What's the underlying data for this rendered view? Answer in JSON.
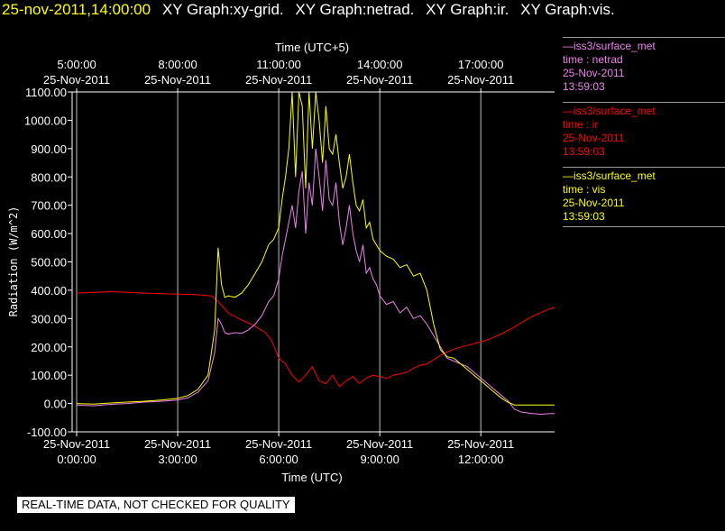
{
  "header": {
    "timestamp": "25-nov-2011,14:00:00",
    "graphs": [
      "XY Graph:xy-grid.",
      "XY Graph:netrad.",
      "XY Graph:ir.",
      "XY Graph:vis."
    ]
  },
  "legend": [
    {
      "title": "—iss3/surface_met",
      "var": "time : netrad",
      "date": "25-Nov-2011",
      "time": "13:59:03",
      "color": "#ee82ee"
    },
    {
      "title": "—iss3/surface_met",
      "var": "time : ir",
      "date": "25-Nov-2011",
      "time": "13:59:03",
      "color": "#ff0000"
    },
    {
      "title": "—iss3/surface_met",
      "var": "time : vis",
      "date": "25-Nov-2011",
      "time": "13:59:03",
      "color": "#ffff00"
    }
  ],
  "notice": "REAL-TIME DATA, NOT CHECKED FOR QUALITY",
  "chart_data": {
    "type": "line",
    "ylabel": "Radiation (W/m^2)",
    "xlabel": "Time (UTC)",
    "x2label": "Time (UTC+5)",
    "ylim": [
      -100,
      1100
    ],
    "xlim_hours": [
      0,
      14.6
    ],
    "yticks": [
      "-100.00",
      "0.00",
      "100.00",
      "200.00",
      "300.00",
      "400.00",
      "500.00",
      "600.00",
      "700.00",
      "800.00",
      "900.00",
      "1000.00",
      "1100.00"
    ],
    "xticks_bottom": [
      {
        "h": 0,
        "date": "25-Nov-2011",
        "time": "0:00:00"
      },
      {
        "h": 3,
        "date": "25-Nov-2011",
        "time": "3:00:00"
      },
      {
        "h": 6,
        "date": "25-Nov-2011",
        "time": "6:00:00"
      },
      {
        "h": 9,
        "date": "25-Nov-2011",
        "time": "9:00:00"
      },
      {
        "h": 12,
        "date": "25-Nov-2011",
        "time": "12:00:00"
      }
    ],
    "xticks_top": [
      {
        "h": 0,
        "time": "5:00:00",
        "date": "25-Nov-2011"
      },
      {
        "h": 3,
        "time": "8:00:00",
        "date": "25-Nov-2011"
      },
      {
        "h": 6,
        "time": "11:00:00",
        "date": "25-Nov-2011"
      },
      {
        "h": 9,
        "time": "14:00:00",
        "date": "25-Nov-2011"
      },
      {
        "h": 12,
        "time": "17:00:00",
        "date": "25-Nov-2011"
      }
    ],
    "grid": "vertical at major ticks",
    "series": [
      {
        "name": "time : ir",
        "color": "#ff0000",
        "x": [
          0,
          0.5,
          1,
          1.5,
          2,
          2.5,
          3,
          3.5,
          4,
          4.2,
          4.5,
          4.8,
          5,
          5.2,
          5.4,
          5.6,
          5.8,
          6,
          6.2,
          6.4,
          6.6,
          6.8,
          7,
          7.2,
          7.4,
          7.6,
          7.8,
          8,
          8.2,
          8.4,
          8.6,
          8.8,
          9,
          9.2,
          9.4,
          9.6,
          9.8,
          10,
          10.2,
          10.4,
          10.6,
          10.8,
          11,
          11.2,
          11.4,
          11.6,
          11.8,
          12,
          12.2,
          12.4,
          12.6,
          12.8,
          13,
          13.2,
          13.4,
          13.6,
          13.8,
          14,
          14.2,
          14.4,
          14.6
        ],
        "y": [
          390,
          392,
          395,
          393,
          390,
          388,
          386,
          385,
          380,
          360,
          320,
          300,
          290,
          278,
          265,
          250,
          220,
          160,
          140,
          100,
          75,
          100,
          130,
          80,
          70,
          100,
          60,
          80,
          95,
          70,
          90,
          100,
          95,
          88,
          100,
          105,
          110,
          125,
          135,
          140,
          155,
          170,
          182,
          192,
          200,
          205,
          212,
          218,
          225,
          235,
          245,
          258,
          270,
          285,
          300,
          312,
          322,
          332,
          340,
          345,
          348
        ]
      },
      {
        "name": "time : netrad",
        "color": "#ee82ee",
        "x": [
          0,
          0.5,
          1,
          1.5,
          2,
          2.5,
          3,
          3.3,
          3.6,
          3.9,
          4.1,
          4.2,
          4.3,
          4.4,
          4.5,
          4.7,
          4.9,
          5.1,
          5.3,
          5.5,
          5.7,
          5.85,
          6.0,
          6.1,
          6.2,
          6.3,
          6.4,
          6.5,
          6.6,
          6.7,
          6.8,
          6.9,
          7.0,
          7.1,
          7.2,
          7.3,
          7.4,
          7.5,
          7.6,
          7.7,
          7.8,
          7.9,
          8.0,
          8.1,
          8.2,
          8.3,
          8.4,
          8.5,
          8.6,
          8.7,
          8.8,
          8.9,
          9.0,
          9.2,
          9.4,
          9.6,
          9.8,
          10.0,
          10.2,
          10.4,
          10.6,
          10.8,
          11.0,
          11.2,
          11.4,
          11.6,
          11.8,
          12.0,
          12.2,
          12.4,
          12.6,
          12.8,
          13.0,
          13.2,
          13.5,
          13.8,
          14.0,
          14.3,
          14.6
        ],
        "y": [
          -5,
          -8,
          -3,
          0,
          5,
          8,
          12,
          20,
          40,
          80,
          180,
          300,
          280,
          250,
          245,
          250,
          248,
          260,
          280,
          310,
          360,
          380,
          440,
          520,
          580,
          640,
          700,
          620,
          750,
          820,
          600,
          780,
          700,
          900,
          800,
          680,
          860,
          720,
          700,
          780,
          640,
          560,
          620,
          700,
          600,
          540,
          500,
          560,
          460,
          480,
          440,
          420,
          380,
          350,
          360,
          320,
          340,
          300,
          310,
          280,
          240,
          200,
          160,
          150,
          140,
          130,
          110,
          90,
          70,
          50,
          30,
          10,
          -20,
          -30,
          -35,
          -38,
          -36,
          -35,
          -35
        ]
      },
      {
        "name": "time : vis",
        "color": "#ffff00",
        "x": [
          0,
          0.5,
          1,
          1.5,
          2,
          2.5,
          3,
          3.3,
          3.6,
          3.9,
          4.1,
          4.2,
          4.3,
          4.4,
          4.5,
          4.7,
          4.9,
          5.1,
          5.3,
          5.5,
          5.7,
          5.85,
          6.0,
          6.1,
          6.2,
          6.3,
          6.4,
          6.5,
          6.6,
          6.7,
          6.8,
          6.9,
          7.0,
          7.1,
          7.2,
          7.3,
          7.4,
          7.5,
          7.6,
          7.7,
          7.8,
          7.9,
          8.0,
          8.1,
          8.2,
          8.3,
          8.4,
          8.5,
          8.6,
          8.7,
          8.8,
          8.9,
          9.0,
          9.2,
          9.4,
          9.6,
          9.8,
          10.0,
          10.2,
          10.4,
          10.6,
          10.8,
          11.0,
          11.2,
          11.4,
          11.6,
          11.8,
          12.0,
          12.2,
          12.4,
          12.6,
          12.8,
          13.0,
          13.2,
          13.5,
          13.8,
          14.0,
          14.3,
          14.6
        ],
        "y": [
          0,
          -2,
          2,
          5,
          8,
          12,
          18,
          28,
          50,
          100,
          260,
          550,
          420,
          375,
          380,
          375,
          390,
          420,
          460,
          500,
          560,
          580,
          620,
          720,
          800,
          900,
          1100,
          800,
          1100,
          1050,
          760,
          1100,
          900,
          1100,
          1000,
          850,
          1050,
          900,
          880,
          950,
          850,
          760,
          800,
          880,
          780,
          700,
          680,
          720,
          620,
          640,
          580,
          560,
          540,
          520,
          510,
          480,
          490,
          450,
          460,
          400,
          280,
          190,
          165,
          160,
          140,
          120,
          100,
          80,
          60,
          40,
          20,
          5,
          -5,
          -5,
          -5,
          -5,
          -5,
          -5,
          -5
        ]
      }
    ]
  }
}
